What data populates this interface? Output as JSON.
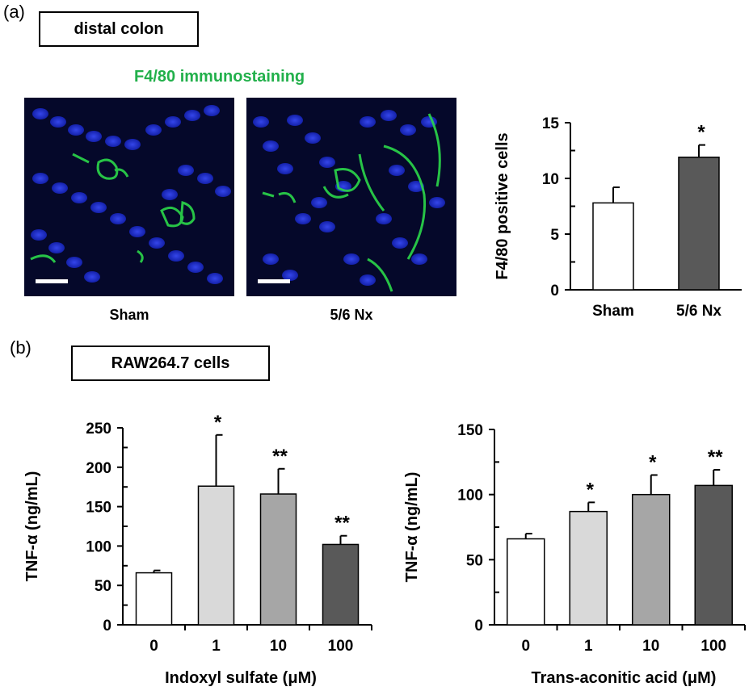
{
  "panel_a": {
    "label": "(a)",
    "region_box": "distal colon",
    "stain_title": "F4/80 immunostaining",
    "stain_color": "#22b04b",
    "images": [
      {
        "caption": "Sham"
      },
      {
        "caption": "5/6 Nx"
      }
    ]
  },
  "panel_b": {
    "label": "(b)",
    "cell_box": "RAW264.7 cells"
  },
  "chart_data": [
    {
      "type": "bar",
      "categories": [
        "Sham",
        "5/6 Nx"
      ],
      "values": [
        7.8,
        11.9
      ],
      "errors": [
        1.4,
        1.1
      ],
      "significance": [
        "",
        "*"
      ],
      "bar_colors": [
        "#ffffff",
        "#595959"
      ],
      "title": "",
      "xlabel": "",
      "ylabel": "F4/80 positive cells",
      "ylim": [
        0,
        15
      ],
      "yticks": [
        0,
        5,
        10,
        15
      ]
    },
    {
      "type": "bar",
      "categories": [
        "0",
        "1",
        "10",
        "100"
      ],
      "values": [
        66,
        176,
        166,
        102
      ],
      "errors": [
        3,
        65,
        32,
        11
      ],
      "significance": [
        "",
        "*",
        "**",
        "**"
      ],
      "bar_colors": [
        "#ffffff",
        "#d9d9d9",
        "#a6a6a6",
        "#595959"
      ],
      "title": "",
      "xlabel": "Indoxyl sulfate (μM)",
      "ylabel": "TNF-α (ng/mL)",
      "ylim": [
        0,
        250
      ],
      "yticks": [
        0,
        50,
        100,
        150,
        200,
        250
      ]
    },
    {
      "type": "bar",
      "categories": [
        "0",
        "1",
        "10",
        "100"
      ],
      "values": [
        66,
        87,
        100,
        107
      ],
      "errors": [
        4,
        7,
        15,
        12
      ],
      "significance": [
        "",
        "*",
        "*",
        "**"
      ],
      "bar_colors": [
        "#ffffff",
        "#d9d9d9",
        "#a6a6a6",
        "#595959"
      ],
      "title": "",
      "xlabel": "Trans-aconitic acid (μM)",
      "ylabel": "TNF-α (ng/mL)",
      "ylim": [
        0,
        150
      ],
      "yticks": [
        0,
        50,
        100,
        150
      ]
    }
  ]
}
